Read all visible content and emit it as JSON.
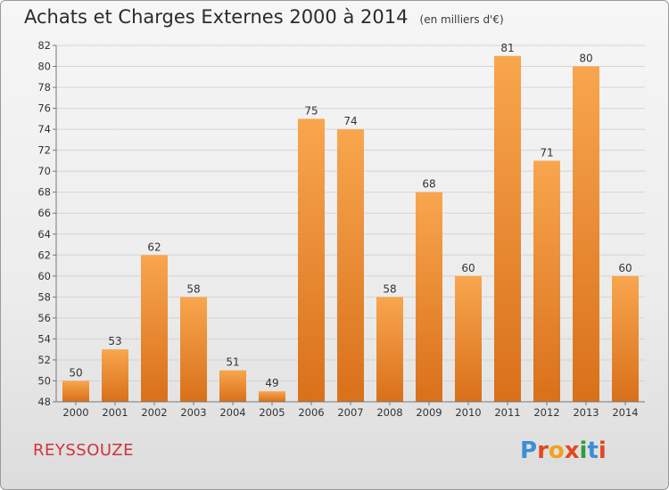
{
  "header": {
    "title": "Achats et Charges Externes 2000 à 2014",
    "unit": "(en milliers d'€)"
  },
  "footer": {
    "commune": "REYSSOUZE",
    "logo_text": "Proxiti"
  },
  "colors": {
    "bar_light": "#f8a64e",
    "bar_dark": "#d9701a",
    "commune_text": "#d0343a"
  },
  "chart_data": {
    "type": "bar",
    "title": "Achats et Charges Externes 2000 à 2014",
    "subtitle": "(en milliers d'€)",
    "categories": [
      "2000",
      "2001",
      "2002",
      "2003",
      "2004",
      "2005",
      "2006",
      "2007",
      "2008",
      "2009",
      "2010",
      "2011",
      "2012",
      "2013",
      "2014"
    ],
    "values": [
      50,
      53,
      62,
      58,
      51,
      49,
      75,
      74,
      58,
      68,
      60,
      81,
      71,
      80,
      60
    ],
    "ylim": [
      48,
      82
    ],
    "yticks": [
      48,
      50,
      52,
      54,
      56,
      58,
      60,
      62,
      64,
      66,
      68,
      70,
      72,
      74,
      76,
      78,
      80,
      82
    ],
    "grid": true
  }
}
